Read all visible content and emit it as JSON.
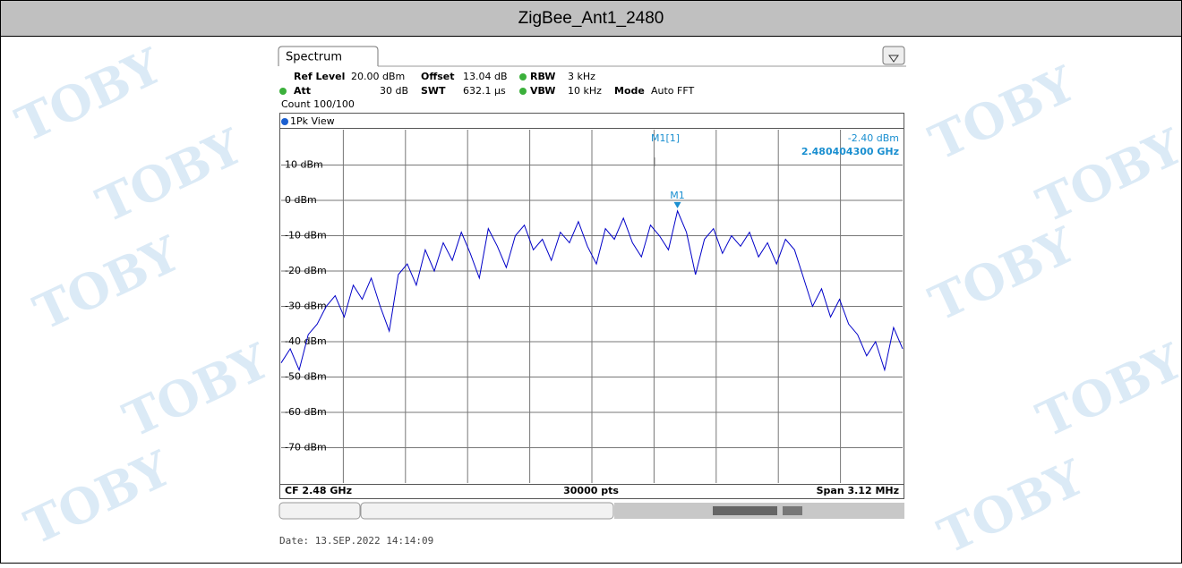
{
  "title": "ZigBee_Ant1_2480",
  "watermark": "TOBY",
  "tab": "Spectrum",
  "settings": {
    "ref_level_label": "Ref Level",
    "ref_level": "20.00 dBm",
    "offset_label": "Offset",
    "offset": "13.04 dB",
    "rbw_label": "RBW",
    "rbw": "3 kHz",
    "att_label": "Att",
    "att": "30 dB",
    "swt_label": "SWT",
    "swt": "632.1 µs",
    "vbw_label": "VBW",
    "vbw": "10 kHz",
    "mode_label": "Mode",
    "mode": "Auto FFT",
    "count": "Count 100/100"
  },
  "view": "1Pk View",
  "marker": {
    "label": "M1[1]",
    "level": "-2.40 dBm",
    "freq": "2.480404300 GHz",
    "name": "M1"
  },
  "trace": {
    "ylim": [
      -80,
      20
    ],
    "yticks": [
      {
        "value": 10,
        "label": "10 dBm"
      },
      {
        "value": 0,
        "label": "0 dBm"
      },
      {
        "value": -10,
        "label": "-10 dBm"
      },
      {
        "value": -20,
        "label": "-20 dBm"
      },
      {
        "value": -30,
        "label": "-30 dBm"
      },
      {
        "value": -40,
        "label": "-40 dBm"
      },
      {
        "value": -50,
        "label": "-50 dBm"
      },
      {
        "value": -60,
        "label": "-60 dBm"
      },
      {
        "value": -70,
        "label": "-70 dBm"
      }
    ],
    "color": "#0000c8",
    "values": [
      -46,
      -42,
      -48,
      -38,
      -35,
      -30,
      -27,
      -33,
      -24,
      -28,
      -22,
      -30,
      -37,
      -21,
      -18,
      -24,
      -14,
      -20,
      -12,
      -17,
      -9,
      -15,
      -22,
      -8,
      -13,
      -19,
      -10,
      -7,
      -14,
      -11,
      -17,
      -9,
      -12,
      -6,
      -13,
      -18,
      -8,
      -11,
      -5,
      -12,
      -16,
      -7,
      -10,
      -14,
      -3,
      -9,
      -21,
      -11,
      -8,
      -15,
      -10,
      -13,
      -9,
      -16,
      -12,
      -18,
      -11,
      -14,
      -22,
      -30,
      -25,
      -33,
      -28,
      -35,
      -38,
      -44,
      -40,
      -48,
      -36,
      -42
    ]
  },
  "footer": {
    "cf": "CF 2.48 GHz",
    "points": "30000 pts",
    "span": "Span 3.12 MHz"
  },
  "date": "Date: 13.SEP.2022  14:14:09"
}
